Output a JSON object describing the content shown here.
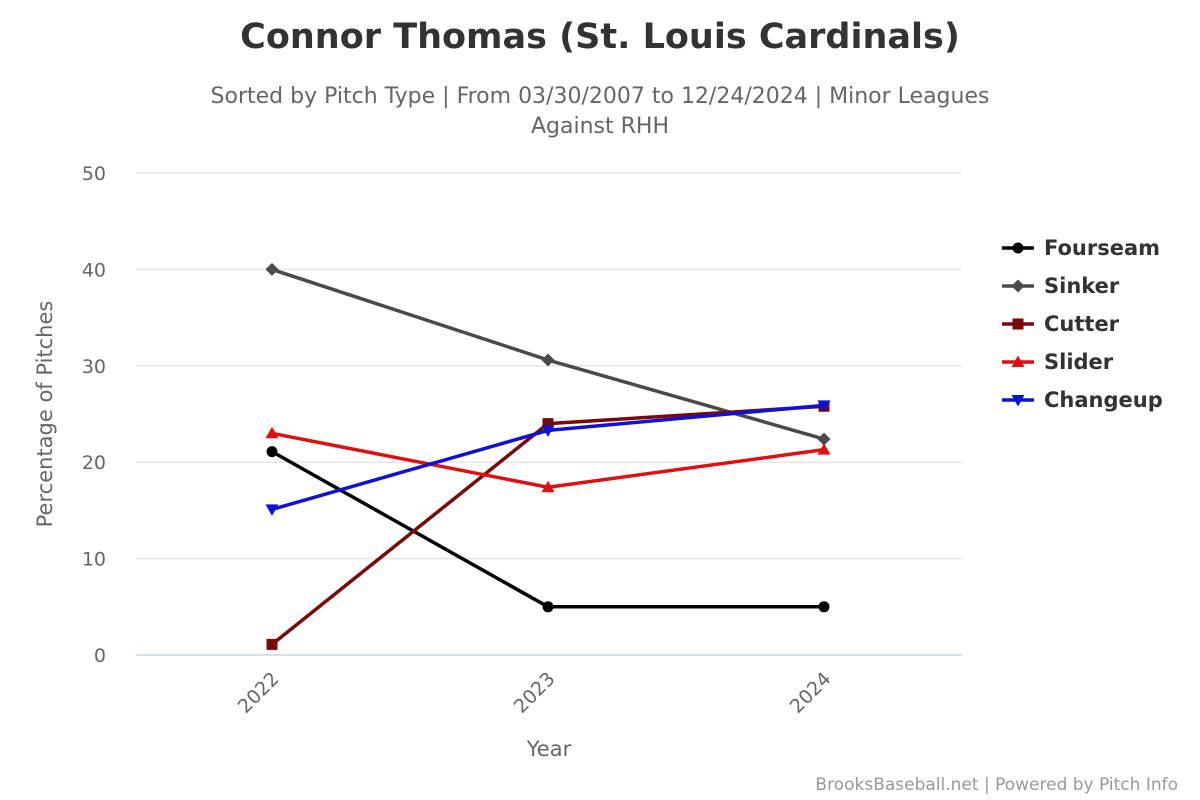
{
  "chart_data": {
    "type": "line",
    "title": "Connor Thomas (St. Louis Cardinals)",
    "subtitle_lines": [
      "Sorted by Pitch Type | From 03/30/2007 to 12/24/2024 | Minor Leagues",
      "Against RHH"
    ],
    "xlabel": "Year",
    "ylabel": "Percentage of Pitches",
    "categories": [
      "2022",
      "2023",
      "2024"
    ],
    "y_ticks": [
      "0",
      "10",
      "20",
      "30",
      "40",
      "50"
    ],
    "ylim": [
      0,
      50
    ],
    "grid": true,
    "legend_position": "right",
    "series": [
      {
        "name": "Fourseam",
        "color": "#000000",
        "marker": "circle",
        "values": [
          21.1,
          5.0,
          5.0
        ]
      },
      {
        "name": "Sinker",
        "color": "#4a4a4a",
        "marker": "diamond",
        "values": [
          40.0,
          30.6,
          22.4
        ]
      },
      {
        "name": "Cutter",
        "color": "#7a0a0a",
        "marker": "square",
        "values": [
          1.1,
          24.0,
          25.8
        ]
      },
      {
        "name": "Slider",
        "color": "#e01010",
        "marker": "triangle",
        "values": [
          23.0,
          17.4,
          21.3
        ]
      },
      {
        "name": "Changeup",
        "color": "#1010d8",
        "marker": "triangle-down",
        "values": [
          15.1,
          23.3,
          25.9
        ]
      }
    ]
  },
  "credit": "BrooksBaseball.net | Powered by Pitch Info"
}
